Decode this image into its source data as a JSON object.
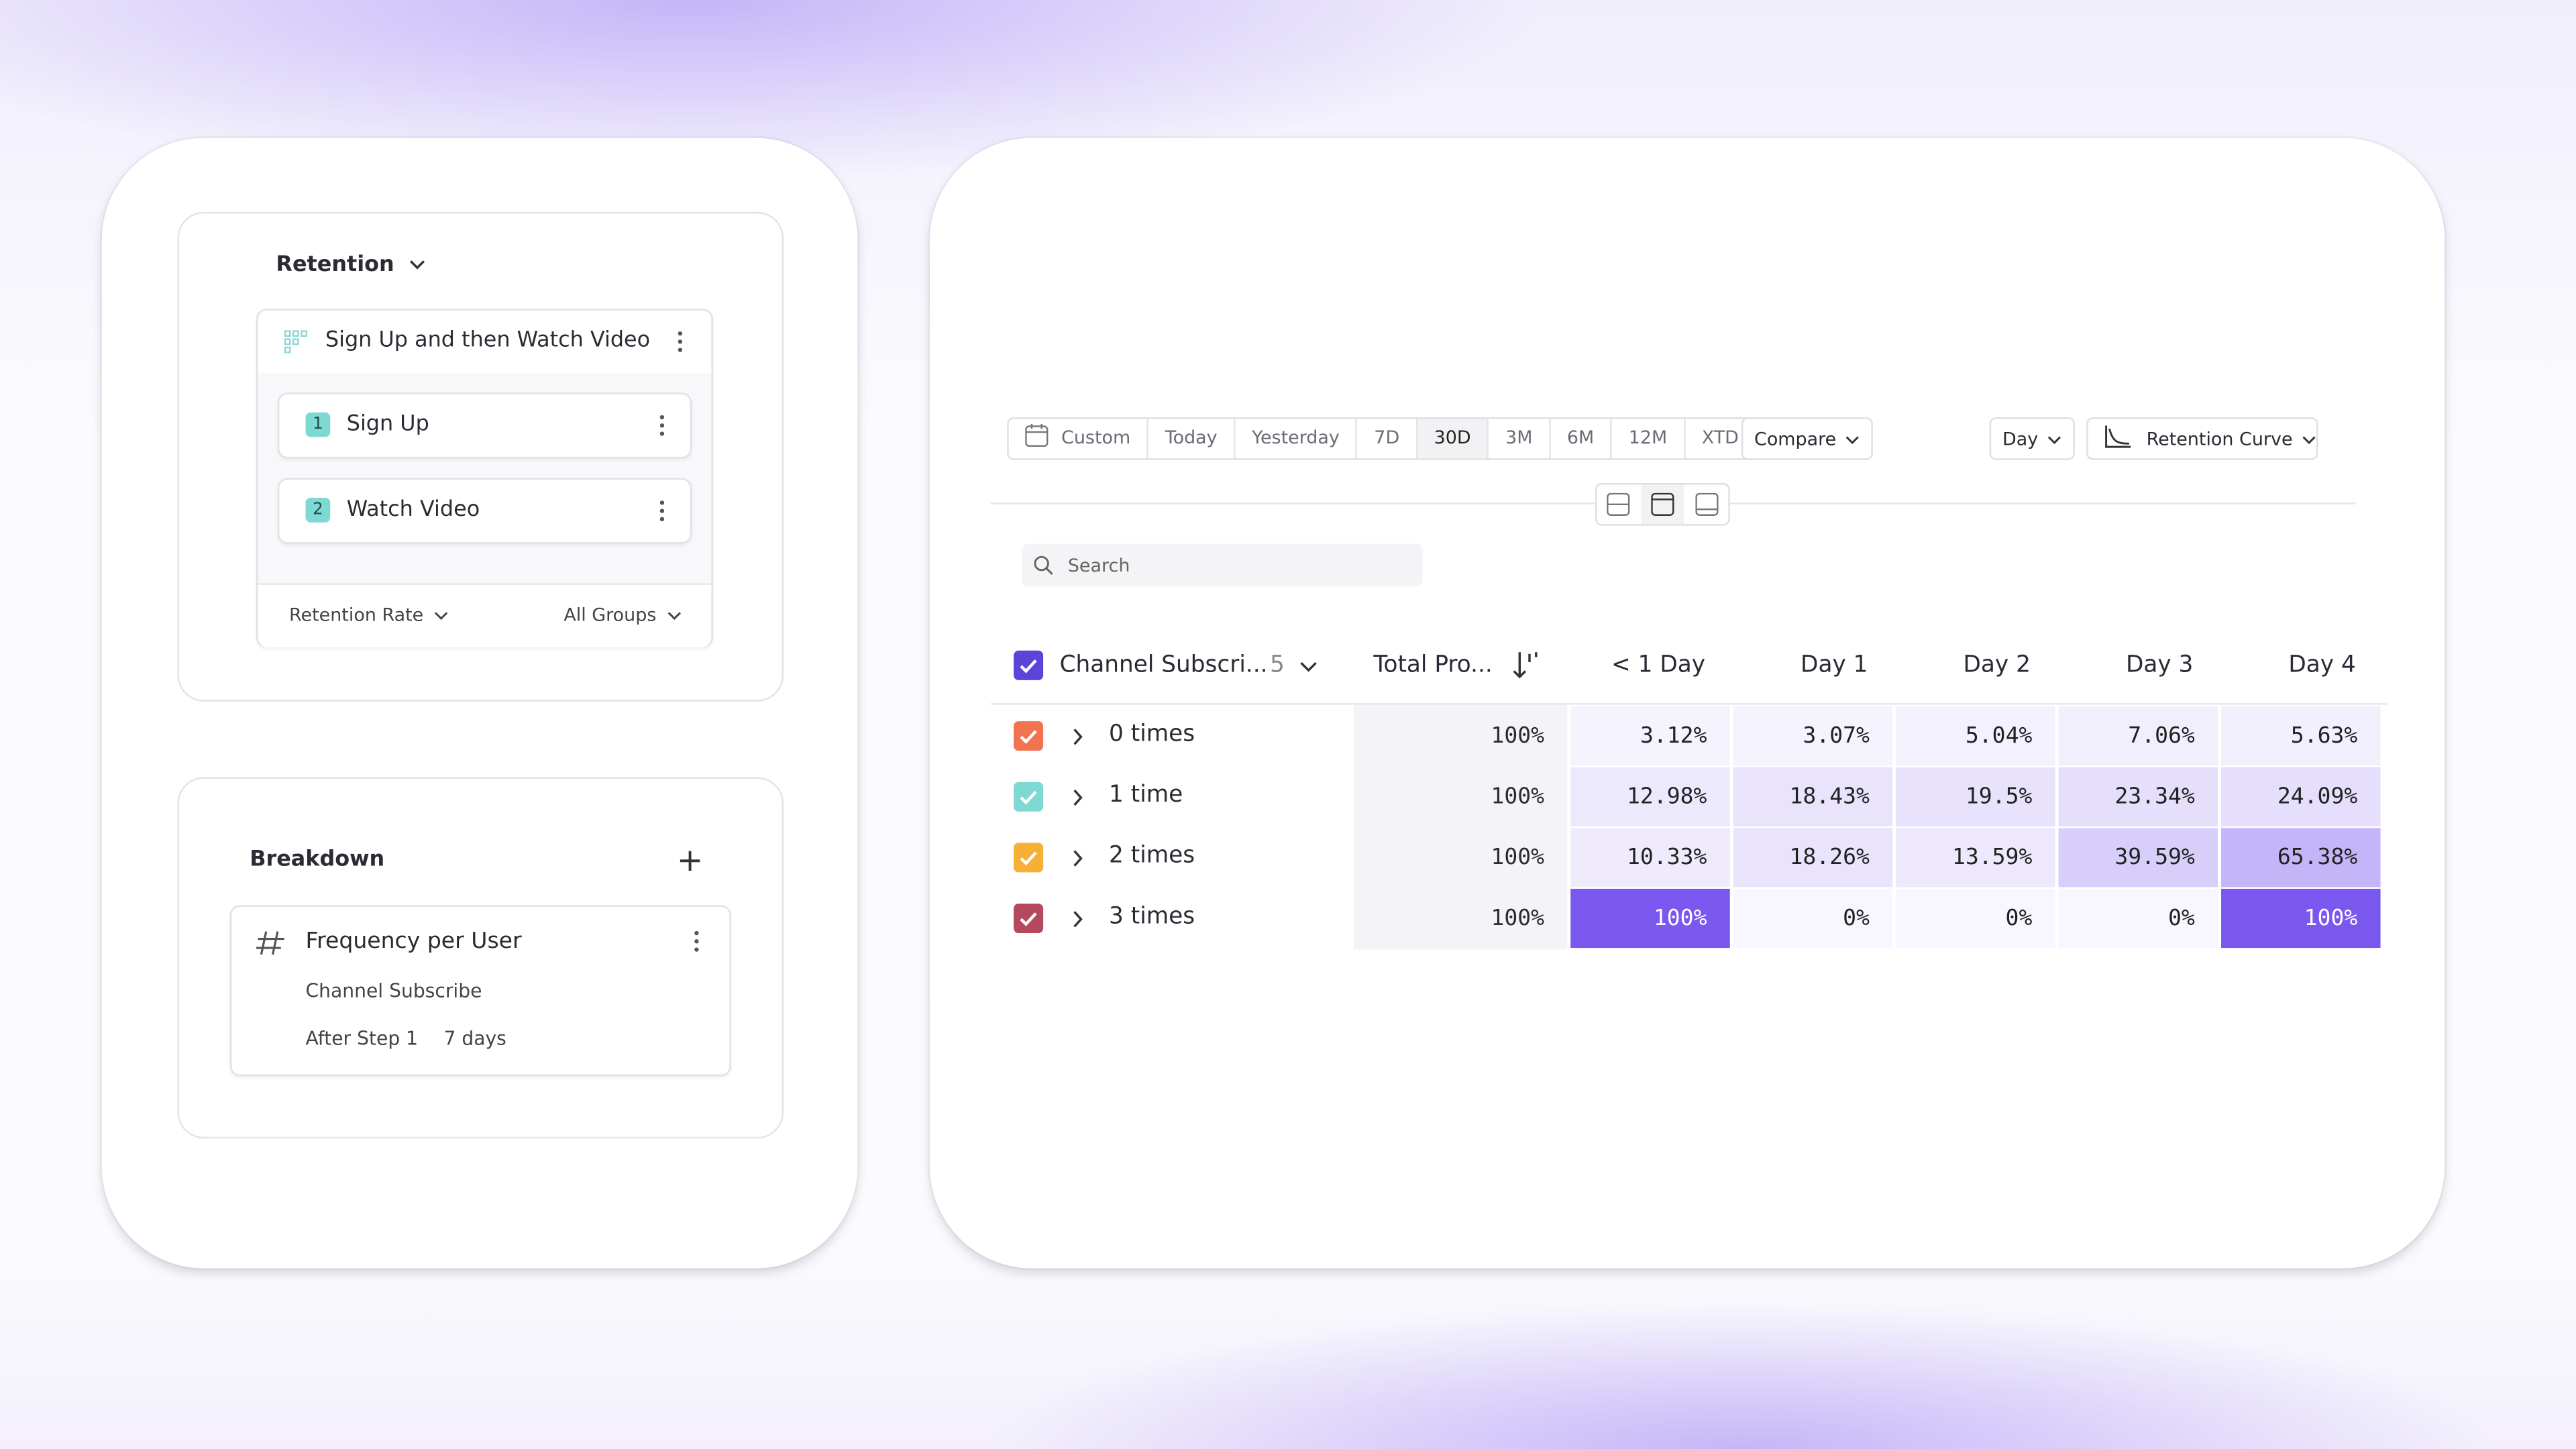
{
  "query_panel": {
    "title": "Retention",
    "funnel": "Sign Up and then Watch Video",
    "steps": [
      {
        "number": "1",
        "label": "Sign Up"
      },
      {
        "number": "2",
        "label": "Watch Video"
      }
    ],
    "measure": "Retention Rate",
    "groups": "All Groups"
  },
  "breakdown": {
    "title": "Breakdown",
    "property": "Frequency per User",
    "event": "Channel Subscribe",
    "window_step": "After Step 1",
    "window": "7 days"
  },
  "toolbar": {
    "ranges": [
      "Custom",
      "Today",
      "Yesterday",
      "7D",
      "30D",
      "3M",
      "6M",
      "12M",
      "XTD"
    ],
    "active_range_index": 4,
    "compare": "Compare",
    "interval": "Day",
    "chart_type": "Retention Curve"
  },
  "search_placeholder": "Search",
  "table": {
    "header": {
      "group": "Channel Subscri...",
      "count": "5",
      "total": "Total Pro...",
      "columns": [
        "< 1 Day",
        "Day 1",
        "Day 2",
        "Day 3",
        "Day 4"
      ]
    },
    "rows": [
      {
        "label": "0 times",
        "color": "#f2734f",
        "total": "100%",
        "cells": [
          "3.12%",
          "3.07%",
          "5.04%",
          "7.06%",
          "5.63%"
        ]
      },
      {
        "label": "1 time",
        "color": "#7fd9d3",
        "total": "100%",
        "cells": [
          "12.98%",
          "18.43%",
          "19.5%",
          "23.34%",
          "24.09%"
        ]
      },
      {
        "label": "2 times",
        "color": "#f5b035",
        "total": "100%",
        "cells": [
          "10.33%",
          "18.26%",
          "13.59%",
          "39.59%",
          "65.38%"
        ]
      },
      {
        "label": "3 times",
        "color": "#b5485d",
        "total": "100%",
        "cells": [
          "100%",
          "0%",
          "0%",
          "0%",
          "100%"
        ]
      }
    ]
  }
}
